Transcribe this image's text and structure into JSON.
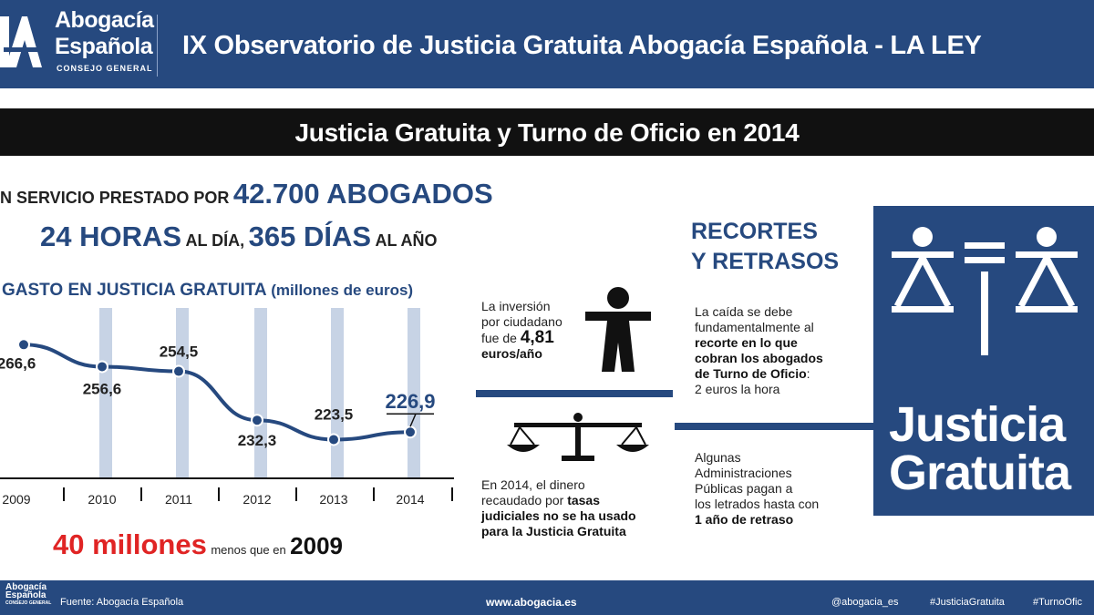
{
  "header": {
    "logo_line1": "Abogacía",
    "logo_line2": "Española",
    "logo_line3": "CONSEJO GENERAL",
    "title": "IX Observatorio de Justicia Gratuita Abogacía Española - LA LEY"
  },
  "section_title": "Justicia Gratuita y Turno de Oficio en 2014",
  "stats": {
    "line1_prefix": "N SERVICIO PRESTADO POR",
    "line1_value": "42.700 ABOGADOS",
    "hours_value": "24 HORAS",
    "hours_suffix": "AL DÍA,",
    "days_value": "365 DÍAS",
    "days_suffix": "AL AÑO"
  },
  "chart_heading": {
    "title": "GASTO EN JUSTICIA GRATUITA",
    "unit": "(millones de euros)"
  },
  "chart_data": {
    "type": "line",
    "title": "GASTO EN JUSTICIA GRATUITA",
    "ylabel": "(millones de euros)",
    "xlabel": "",
    "categories": [
      "2009",
      "2010",
      "2011",
      "2012",
      "2013",
      "2014"
    ],
    "values": [
      266.6,
      256.6,
      254.5,
      232.3,
      223.5,
      226.9
    ],
    "value_labels": [
      "266,6",
      "256,6",
      "254,5",
      "232,3",
      "223,5",
      "226,9"
    ],
    "ylim": [
      215,
      275
    ],
    "grid": "vertical bands",
    "highlight_last": true
  },
  "total_note": {
    "value": "40 millones",
    "middle": "menos que en",
    "year": "2009"
  },
  "middle": {
    "inv_1": "La inversión",
    "inv_2": "por ciudadano",
    "inv_3": "fue de",
    "inv_value": "4,81",
    "inv_unit": "euros/año",
    "tasas_1": "En 2014, el dinero",
    "tasas_2": "recaudado por",
    "tasas_bold1": "tasas",
    "tasas_bold2": "judiciales no se ha usado",
    "tasas_bold3": "para la Justicia Gratuita"
  },
  "right": {
    "heading1": "RECORTES",
    "heading2": "Y RETRASOS",
    "p1_1": "La caída se debe",
    "p1_2": "fundamentalmente al",
    "p1_b1": "recorte en lo que",
    "p1_b2": "cobran los abogados",
    "p1_b3": "de Turno de Oficio",
    "p1_b3_tail": ":",
    "p1_4": "2 euros la hora",
    "p2_1": "Algunas",
    "p2_2": "Administraciones",
    "p2_3": "Públicas pagan a",
    "p2_4": "los letrados hasta con",
    "p2_b5": "1 año de retraso"
  },
  "badge": {
    "word1": "Justicia",
    "word2": "Gratuita"
  },
  "footer": {
    "logo1": "Abogacía",
    "logo2": "Española",
    "logo3": "CONSEJO GENERAL",
    "source": "Fuente: Abogacía Española",
    "url": "www.abogacia.es",
    "handle": "@abogacia_es",
    "tag1": "#JusticiaGratuita",
    "tag2": "#TurnoOfic"
  },
  "colors": {
    "brand": "#26497f",
    "accent_red": "#e02424",
    "band": "#c7d3e5",
    "black": "#111111"
  }
}
